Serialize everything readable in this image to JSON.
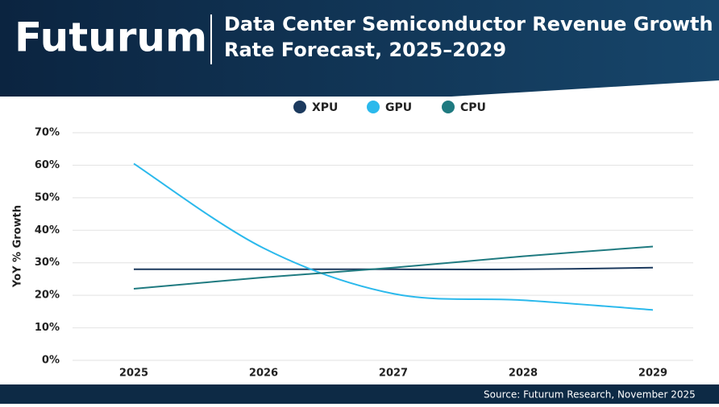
{
  "brand": "Futurum",
  "source": "Source: Futurum Research, November 2025",
  "chart_data": {
    "type": "line",
    "title": "Data Center Semiconductor Revenue Growth Rate Forecast, 2025–2029",
    "y_label": "YoY % Growth",
    "x": [
      "2025",
      "2026",
      "2027",
      "2028",
      "2029"
    ],
    "series": [
      {
        "name": "XPU",
        "color": "#1c3a5e",
        "values": [
          28,
          28,
          28,
          28,
          28.5
        ]
      },
      {
        "name": "GPU",
        "color": "#2bb9ec",
        "values": [
          60.5,
          34.5,
          20.5,
          18.5,
          15.5
        ]
      },
      {
        "name": "CPU",
        "color": "#1f7a80",
        "values": [
          22,
          25.5,
          28.5,
          32,
          35
        ]
      }
    ],
    "ylim": [
      0,
      70
    ],
    "yticks": [
      {
        "value": 0,
        "label": "0%"
      },
      {
        "value": 10,
        "label": "10%"
      },
      {
        "value": 20,
        "label": "20%"
      },
      {
        "value": 30,
        "label": "30%"
      },
      {
        "value": 40,
        "label": "40%"
      },
      {
        "value": 50,
        "label": "50%"
      },
      {
        "value": 60,
        "label": "60%"
      },
      {
        "value": 70,
        "label": "70%"
      }
    ],
    "grid": true,
    "legend": "top"
  }
}
